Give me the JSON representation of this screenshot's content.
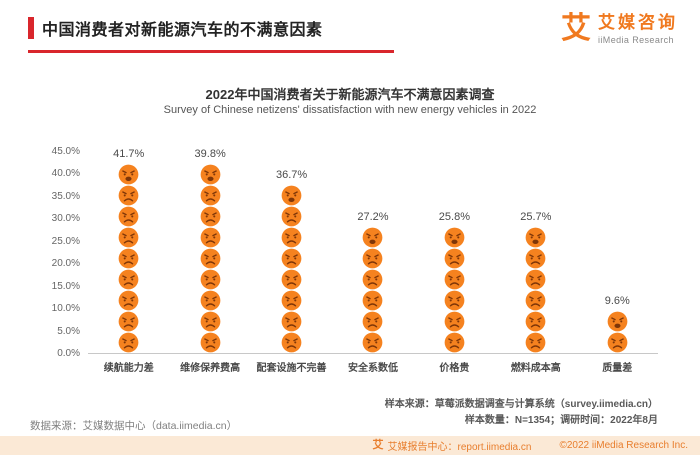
{
  "header": {
    "title": "中国消费者对新能源汽车的不满意因素"
  },
  "logo": {
    "mark": "艾",
    "brand_cn": "艾媒咨询",
    "brand_en": "iiMedia Research"
  },
  "chart_data": {
    "type": "bar",
    "variant": "pictogram-stacked-angry-faces",
    "title": "2022年中国消费者关于新能源汽车不满意因素调查",
    "subtitle": "Survey of Chinese netizens' dissatisfaction with new energy vehicles in 2022",
    "categories": [
      "续航能力差",
      "维修保养费高",
      "配套设施不完善",
      "安全系数低",
      "价格贵",
      "燃料成本高",
      "质量差"
    ],
    "values": [
      41.7,
      39.8,
      36.7,
      27.2,
      25.8,
      25.7,
      9.6
    ],
    "value_labels": [
      "41.7%",
      "39.8%",
      "36.7%",
      "27.2%",
      "25.8%",
      "25.7%",
      "9.6%"
    ],
    "xlabel": "",
    "ylabel": "",
    "ylim": [
      0,
      45
    ],
    "yticks": [
      "45.0%",
      "40.0%",
      "35.0%",
      "30.0%",
      "25.0%",
      "20.0%",
      "15.0%",
      "10.0%",
      "5.0%",
      "0.0%"
    ],
    "grid": false,
    "legend": "none",
    "percent_per_face": 4.62,
    "face_color": "#F5821F",
    "face_feature_color": "#7F3608",
    "brand_red": "#D9262C"
  },
  "notes": {
    "data_source": "数据来源：艾媒数据中心（data.iimedia.cn）",
    "sample_source": "样本来源：草莓派数据调查与计算系统（survey.iimedia.cn）",
    "sample_info": "样本数量：N=1354；调研时间：2022年8月"
  },
  "footer": {
    "report_center": "艾媒报告中心：report.iimedia.cn",
    "copyright": "©2022 iiMedia Research Inc.",
    "accent_color": "#E87E2E"
  }
}
